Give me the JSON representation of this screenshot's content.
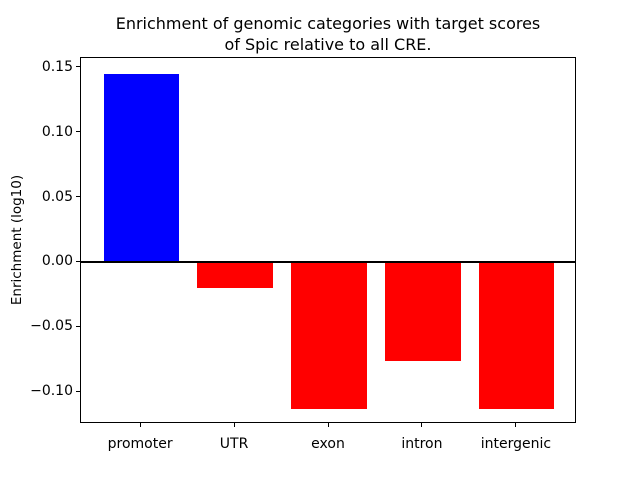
{
  "chart_data": {
    "type": "bar",
    "title": "Enrichment of genomic categories with target scores\nof Spic relative to all CRE.",
    "xlabel": "",
    "ylabel": "Enrichment (log10)",
    "categories": [
      "promoter",
      "UTR",
      "exon",
      "intron",
      "intergenic"
    ],
    "values": [
      0.145,
      -0.02,
      -0.113,
      -0.076,
      -0.113
    ],
    "bar_colors": [
      "#0000ff",
      "#ff0000",
      "#ff0000",
      "#ff0000",
      "#ff0000"
    ],
    "positive_color": "#0000ff",
    "negative_color": "#ff0000",
    "yticks": [
      {
        "value": 0.15,
        "label": "0.15"
      },
      {
        "value": 0.1,
        "label": "0.10"
      },
      {
        "value": 0.05,
        "label": "0.05"
      },
      {
        "value": 0.0,
        "label": "0.00"
      },
      {
        "value": -0.05,
        "label": "−0.05"
      },
      {
        "value": -0.1,
        "label": "−0.10"
      }
    ],
    "ylim": [
      -0.1245,
      0.1575
    ],
    "xlim": [
      -0.64,
      4.64
    ],
    "bar_width": 0.8,
    "zero_line": true,
    "grid": false,
    "legend": "none"
  }
}
